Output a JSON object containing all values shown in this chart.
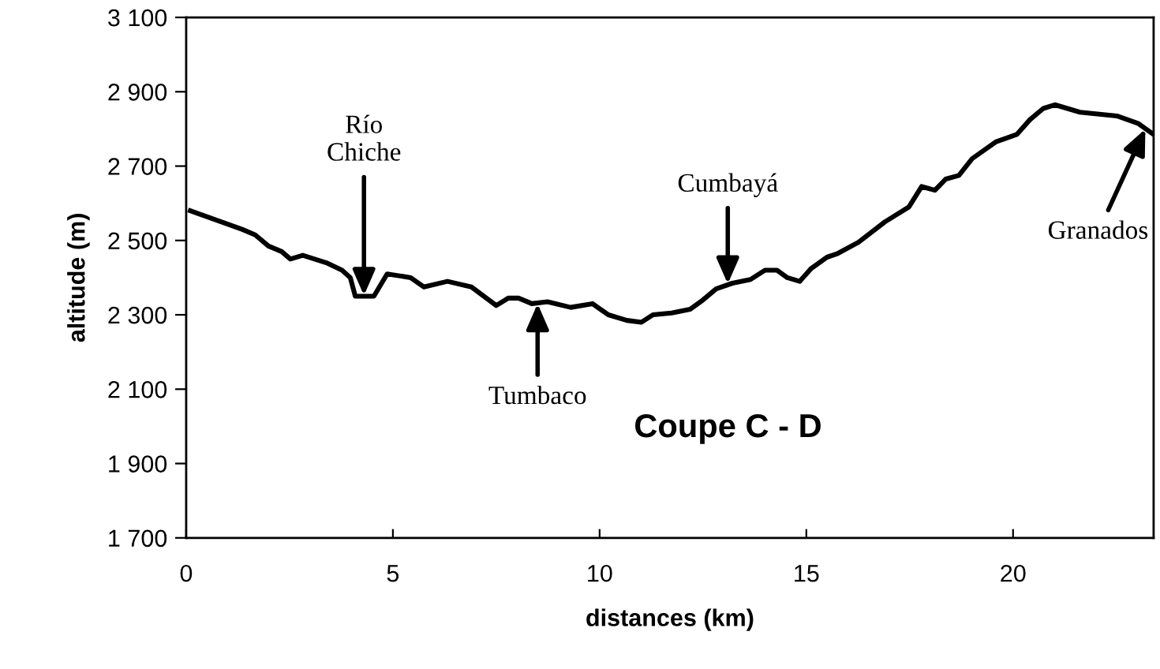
{
  "chart_data": {
    "type": "line",
    "title": "Coupe C - D",
    "xlabel": "distances (km)",
    "ylabel": "altitude (m)",
    "xlim": [
      0,
      23.4
    ],
    "xticks": [
      0,
      5,
      10,
      15,
      20
    ],
    "ylim": [
      1700,
      3100
    ],
    "yticks": [
      {
        "value": 1700,
        "label": "1 700"
      },
      {
        "value": 1900,
        "label": "1 900"
      },
      {
        "value": 2100,
        "label": "2 100"
      },
      {
        "value": 2300,
        "label": "2 300"
      },
      {
        "value": 2500,
        "label": "2 500"
      },
      {
        "value": 2700,
        "label": "2 700"
      },
      {
        "value": 2900,
        "label": "2 900"
      },
      {
        "value": 3100,
        "label": "3 100"
      }
    ],
    "grid": false,
    "legend": false,
    "marker": "none",
    "line_style": "solid",
    "series": [
      {
        "color": "#000000",
        "x": [
          0.1,
          1.35,
          1.67,
          1.99,
          2.31,
          2.52,
          2.82,
          3.39,
          3.77,
          3.97,
          4.09,
          4.54,
          4.86,
          5.43,
          5.75,
          6.32,
          6.9,
          7.5,
          7.79,
          8.04,
          8.36,
          8.74,
          9.3,
          9.83,
          10.21,
          10.66,
          11.01,
          11.29,
          11.74,
          12.19,
          12.5,
          12.82,
          13.21,
          13.65,
          14.0,
          14.29,
          14.54,
          14.84,
          15.12,
          15.5,
          15.76,
          16.26,
          16.9,
          17.48,
          17.79,
          18.11,
          18.37,
          18.69,
          19.01,
          19.58,
          20.09,
          20.41,
          20.73,
          21.01,
          21.62,
          22.51,
          23.02,
          23.4
        ],
        "values": [
          2580,
          2530,
          2515,
          2485,
          2470,
          2450,
          2460,
          2440,
          2420,
          2400,
          2350,
          2350,
          2410,
          2400,
          2375,
          2390,
          2375,
          2325,
          2345,
          2345,
          2330,
          2335,
          2320,
          2330,
          2300,
          2285,
          2280,
          2300,
          2305,
          2315,
          2340,
          2370,
          2385,
          2395,
          2420,
          2420,
          2400,
          2390,
          2425,
          2455,
          2465,
          2495,
          2550,
          2590,
          2645,
          2635,
          2665,
          2675,
          2720,
          2765,
          2785,
          2825,
          2855,
          2865,
          2845,
          2835,
          2815,
          2785
        ]
      }
    ],
    "annotations": [
      {
        "text": "Río\nChiche",
        "x": 4.3,
        "y": 2352
      },
      {
        "text": "Tumbaco",
        "x": 8.5,
        "y": 2330
      },
      {
        "text": "Cumbayá",
        "x": 13.1,
        "y": 2383
      },
      {
        "text": "Granados",
        "x": 23.2,
        "y": 2800
      }
    ]
  }
}
